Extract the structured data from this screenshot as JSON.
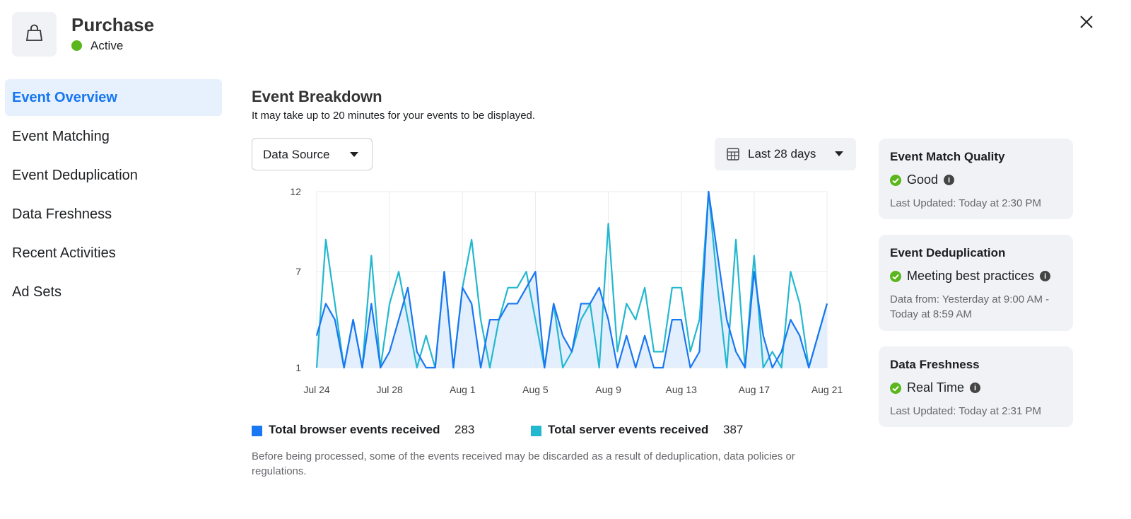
{
  "header": {
    "title": "Purchase",
    "status": "Active"
  },
  "sidebar": {
    "items": [
      "Event Overview",
      "Event Matching",
      "Event Deduplication",
      "Data Freshness",
      "Recent Activities",
      "Ad Sets"
    ]
  },
  "main": {
    "title": "Event Breakdown",
    "subtitle": "It may take up to 20 minutes for your events to be displayed.",
    "data_source": "Data Source",
    "date_range": "Last 28 days",
    "footnote": "Before being processed, some of the events received may be discarded as a result of deduplication, data policies or regulations."
  },
  "chart_data": {
    "type": "line",
    "x": [
      0,
      0.5,
      1,
      1.5,
      2,
      2.5,
      3,
      3.5,
      4,
      4.5,
      5,
      5.5,
      6,
      6.5,
      7,
      7.5,
      8,
      8.5,
      9,
      9.5,
      10,
      10.5,
      11,
      11.5,
      12,
      12.5,
      13,
      13.5,
      14,
      14.5,
      15,
      15.5,
      16,
      16.5,
      17,
      17.5,
      18,
      18.5,
      19,
      19.5,
      20,
      20.5,
      21,
      21.5,
      22,
      22.5,
      23,
      23.5,
      24,
      24.5,
      25,
      25.5,
      26,
      26.5,
      27,
      27.5,
      28
    ],
    "xlim": [
      0,
      28
    ],
    "xticks": [
      {
        "value": 0,
        "label": "Jul 24"
      },
      {
        "value": 4,
        "label": "Jul 28"
      },
      {
        "value": 8,
        "label": "Aug 1"
      },
      {
        "value": 12,
        "label": "Aug 5"
      },
      {
        "value": 16,
        "label": "Aug 9"
      },
      {
        "value": 20,
        "label": "Aug 13"
      },
      {
        "value": 24,
        "label": "Aug 17"
      },
      {
        "value": 28,
        "label": "Aug 21"
      }
    ],
    "ylim": [
      1,
      12
    ],
    "yticks": [
      1,
      7,
      12
    ],
    "grid": true,
    "series": [
      {
        "name": "Total browser events received",
        "total": 283,
        "color": "#1877f2",
        "fill": "#dcebfb",
        "values": [
          3,
          5,
          4,
          1,
          4,
          1,
          5,
          1,
          2,
          4,
          6,
          2,
          1,
          1,
          7,
          1,
          6,
          5,
          1,
          4,
          4,
          5,
          5,
          6,
          7,
          1,
          5,
          3,
          2,
          5,
          5,
          6,
          4,
          1,
          3,
          1,
          3,
          1,
          1,
          4,
          4,
          1,
          2,
          12,
          8,
          4,
          2,
          1,
          7,
          3,
          1,
          2,
          4,
          3,
          1,
          3,
          5
        ]
      },
      {
        "name": "Total server events received",
        "total": 387,
        "color": "#22b8cf",
        "values": [
          1,
          9,
          5,
          1,
          4,
          1,
          8,
          1,
          5,
          7,
          4,
          1,
          3,
          1,
          7,
          1,
          6,
          9,
          4,
          1,
          4,
          6,
          6,
          7,
          4,
          1,
          5,
          1,
          2,
          4,
          5,
          1,
          10,
          2,
          5,
          4,
          6,
          2,
          2,
          6,
          6,
          2,
          4,
          12,
          6,
          1,
          9,
          1,
          8,
          1,
          2,
          1,
          7,
          5,
          1,
          3,
          5
        ]
      }
    ]
  },
  "cards": [
    {
      "title": "Event Match Quality",
      "status": "Good",
      "note": "Last Updated: Today at 2:30 PM"
    },
    {
      "title": "Event Deduplication",
      "status": "Meeting best practices",
      "note": "Data from: Yesterday at 9:00 AM - Today at 8:59 AM"
    },
    {
      "title": "Data Freshness",
      "status": "Real Time",
      "note": "Last Updated: Today at 2:31 PM"
    }
  ]
}
